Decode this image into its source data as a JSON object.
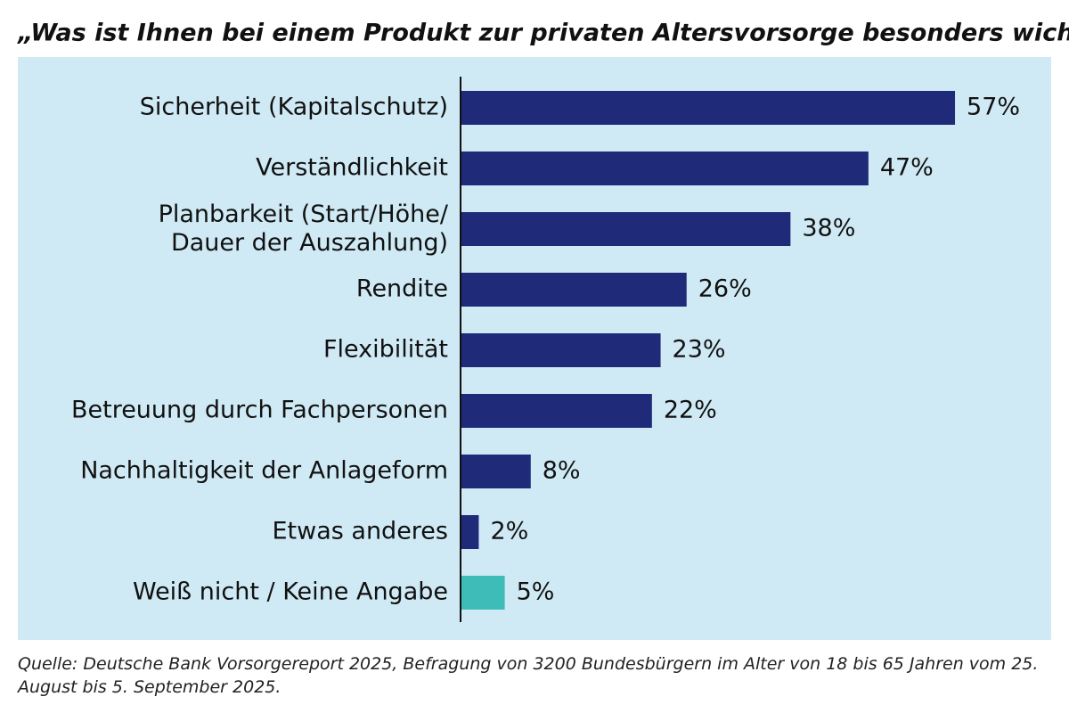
{
  "chart_data": {
    "type": "bar",
    "orientation": "horizontal",
    "title": "„Was ist Ihnen bei einem Produkt zur privaten Altersvorsorge besonders wichtig?“",
    "categories": [
      "Sicherheit (Kapitalschutz)",
      "Verständlichkeit",
      "Planbarkeit (Start/Höhe/\nDauer der Auszahlung)",
      "Rendite",
      "Flexibilität",
      "Betreuung durch Fachpersonen",
      "Nachhaltigkeit der Anlageform",
      "Etwas anderes",
      "Weiß nicht / Keine Angabe"
    ],
    "values": [
      57,
      47,
      38,
      26,
      23,
      22,
      8,
      2,
      5
    ],
    "value_labels": [
      "57%",
      "47%",
      "38%",
      "26%",
      "23%",
      "22%",
      "8%",
      "2%",
      "5%"
    ],
    "colors": [
      "#1f2a78",
      "#1f2a78",
      "#1f2a78",
      "#1f2a78",
      "#1f2a78",
      "#1f2a78",
      "#1f2a78",
      "#1f2a78",
      "#3dbcb8"
    ],
    "source": "Quelle: Deutsche Bank Vorsorgereport 2025, Befragung von 3200 Bundesbürgern im Alter von 18 bis 65 Jahren vom 25. August bis 5. September 2025."
  }
}
